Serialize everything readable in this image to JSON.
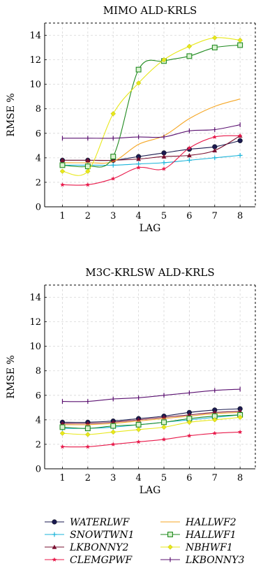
{
  "chart_data": [
    {
      "type": "line",
      "title": "MIMO ALD-KRLS",
      "xlabel": "LAG",
      "ylabel": "RMSE %",
      "x": [
        1,
        2,
        3,
        4,
        5,
        6,
        7,
        8
      ],
      "xticks": [
        "1",
        "2",
        "3",
        "4",
        "5",
        "6",
        "7",
        "8"
      ],
      "yticks": [
        "0",
        "2",
        "4",
        "6",
        "8",
        "10",
        "12",
        "14"
      ],
      "xlim": [
        0.3,
        8.6
      ],
      "ylim": [
        0,
        15
      ],
      "grid": true,
      "series": [
        {
          "name": "WATERLWF",
          "values": [
            3.8,
            3.8,
            3.8,
            4.1,
            4.4,
            4.7,
            4.9,
            5.4
          ]
        },
        {
          "name": "SNOWTWN1",
          "values": [
            3.4,
            3.4,
            3.4,
            3.5,
            3.6,
            3.8,
            4.0,
            4.2
          ]
        },
        {
          "name": "LKBONNY2",
          "values": [
            3.8,
            3.8,
            3.8,
            3.9,
            4.1,
            4.2,
            4.6,
            5.8
          ]
        },
        {
          "name": "CLEMGPWF",
          "values": [
            1.8,
            1.8,
            2.3,
            3.2,
            3.1,
            4.8,
            5.7,
            5.8
          ]
        },
        {
          "name": "HALLWF2",
          "values": [
            3.6,
            3.6,
            3.7,
            5.1,
            5.8,
            7.2,
            8.2,
            8.8
          ]
        },
        {
          "name": "HALLWF1",
          "values": [
            3.4,
            3.3,
            4.1,
            11.2,
            11.9,
            12.3,
            13.0,
            13.2
          ]
        },
        {
          "name": "NBHWF1",
          "values": [
            2.9,
            2.9,
            7.6,
            10.1,
            12.0,
            13.1,
            13.8,
            13.6
          ]
        },
        {
          "name": "LKBONNY3",
          "values": [
            5.6,
            5.6,
            5.6,
            5.7,
            5.7,
            6.2,
            6.3,
            6.7
          ]
        }
      ]
    },
    {
      "type": "line",
      "title": "M3C-KRLSW ALD-KRLS",
      "xlabel": "LAG",
      "ylabel": "RMSE %",
      "x": [
        1,
        2,
        3,
        4,
        5,
        6,
        7,
        8
      ],
      "xticks": [
        "1",
        "2",
        "3",
        "4",
        "5",
        "6",
        "7",
        "8"
      ],
      "yticks": [
        "0",
        "2",
        "4",
        "6",
        "8",
        "10",
        "12",
        "14"
      ],
      "xlim": [
        0.3,
        8.6
      ],
      "ylim": [
        0,
        15
      ],
      "grid": true,
      "series": [
        {
          "name": "WATERLWF",
          "values": [
            3.8,
            3.8,
            3.9,
            4.1,
            4.3,
            4.6,
            4.8,
            4.9
          ]
        },
        {
          "name": "SNOWTWN1",
          "values": [
            3.3,
            3.3,
            3.4,
            3.6,
            3.8,
            4.0,
            4.2,
            4.4
          ]
        },
        {
          "name": "LKBONNY2",
          "values": [
            3.7,
            3.7,
            3.8,
            4.0,
            4.2,
            4.4,
            4.6,
            4.7
          ]
        },
        {
          "name": "CLEMGPWF",
          "values": [
            1.8,
            1.8,
            2.0,
            2.2,
            2.4,
            2.7,
            2.9,
            3.0
          ]
        },
        {
          "name": "HALLWF2",
          "values": [
            3.6,
            3.6,
            3.7,
            3.9,
            4.1,
            4.3,
            4.5,
            4.6
          ]
        },
        {
          "name": "HALLWF1",
          "values": [
            3.4,
            3.3,
            3.5,
            3.6,
            3.8,
            4.1,
            4.3,
            4.4
          ]
        },
        {
          "name": "NBHWF1",
          "values": [
            2.9,
            2.8,
            3.0,
            3.2,
            3.4,
            3.8,
            4.0,
            4.2
          ]
        },
        {
          "name": "LKBONNY3",
          "values": [
            5.5,
            5.5,
            5.7,
            5.8,
            6.0,
            6.2,
            6.4,
            6.5
          ]
        }
      ]
    }
  ],
  "legend": {
    "entries": [
      {
        "label": "WATERLWF",
        "color": "#1a1a4f",
        "marker": "dot"
      },
      {
        "label": "HALLWF2",
        "color": "#f5a623",
        "marker": "none"
      },
      {
        "label": "SNOWTWN1",
        "color": "#19b3d9",
        "marker": "plus"
      },
      {
        "label": "HALLWF1",
        "color": "#1f8a1f",
        "marker": "square"
      },
      {
        "label": "LKBONNY2",
        "color": "#7a1030",
        "marker": "triangle"
      },
      {
        "label": "NBHWF1",
        "color": "#e8e81a",
        "marker": "diamond"
      },
      {
        "label": "CLEMGPWF",
        "color": "#e8194a",
        "marker": "star"
      },
      {
        "label": "LKBONNY3",
        "color": "#5a1070",
        "marker": "vbar"
      }
    ]
  }
}
